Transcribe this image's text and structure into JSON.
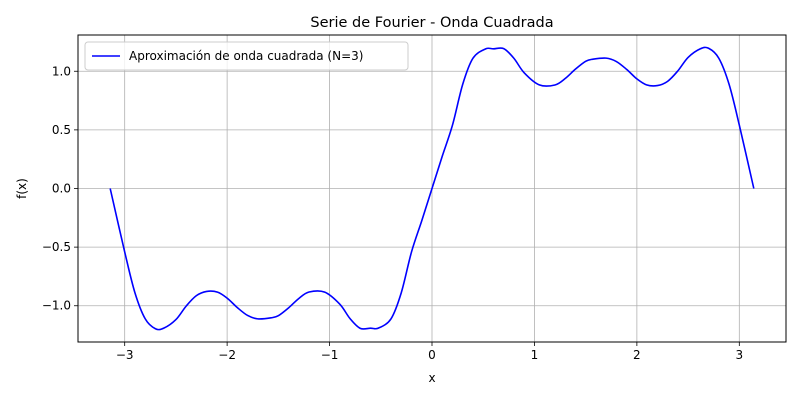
{
  "chart_data": {
    "type": "line",
    "title": "Serie de Fourier - Onda Cuadrada",
    "xlabel": "x",
    "ylabel": "f(x)",
    "xlim": [
      -3.4558,
      3.4558
    ],
    "ylim": [
      -1.3092,
      1.3092
    ],
    "xticks": [
      -3,
      -2,
      -1,
      0,
      1,
      2,
      3
    ],
    "xtick_labels": [
      "−3",
      "−2",
      "−1",
      "0",
      "1",
      "2",
      "3"
    ],
    "yticks": [
      -1.0,
      -0.5,
      0.0,
      0.5,
      1.0
    ],
    "ytick_labels": [
      "−1.0",
      "−0.5",
      "0.0",
      "0.5",
      "1.0"
    ],
    "grid": true,
    "legend_position": "top-left",
    "series": [
      {
        "name": "Aproximación de onda cuadrada (N=3)",
        "color": "#0000ff",
        "x": [
          -3.1416,
          -3.0,
          -2.9,
          -2.8,
          -2.7,
          -2.618,
          -2.5,
          -2.4,
          -2.3,
          -2.2,
          -2.0944,
          -2.0,
          -1.9,
          -1.8,
          -1.7,
          -1.5708,
          -1.5,
          -1.4,
          -1.3,
          -1.2,
          -1.0472,
          -0.9,
          -0.8,
          -0.7,
          -0.6,
          -0.5236,
          -0.4,
          -0.3,
          -0.2,
          -0.1,
          0.0,
          0.1,
          0.2,
          0.3,
          0.4,
          0.5236,
          0.6,
          0.7,
          0.8,
          0.9,
          1.0472,
          1.2,
          1.3,
          1.4,
          1.5,
          1.5708,
          1.7,
          1.8,
          1.9,
          2.0,
          2.0944,
          2.2,
          2.3,
          2.4,
          2.5,
          2.618,
          2.7,
          2.8,
          2.9,
          3.0,
          3.1416
        ],
        "y": [
          0.0,
          -0.541,
          -0.889,
          -1.111,
          -1.196,
          -1.191,
          -1.118,
          -1.003,
          -0.914,
          -0.878,
          -0.884,
          -0.935,
          -1.016,
          -1.083,
          -1.112,
          -1.103,
          -1.085,
          -1.018,
          -0.938,
          -0.883,
          -0.884,
          -0.987,
          -1.11,
          -1.193,
          -1.191,
          -1.191,
          -1.111,
          -0.889,
          -0.541,
          -0.275,
          0.0,
          0.275,
          0.541,
          0.889,
          1.111,
          1.191,
          1.191,
          1.193,
          1.11,
          0.987,
          0.884,
          0.883,
          0.938,
          1.018,
          1.085,
          1.103,
          1.112,
          1.083,
          1.016,
          0.935,
          0.884,
          0.878,
          0.914,
          1.003,
          1.118,
          1.191,
          1.196,
          1.111,
          0.889,
          0.541,
          0.0
        ]
      }
    ]
  }
}
